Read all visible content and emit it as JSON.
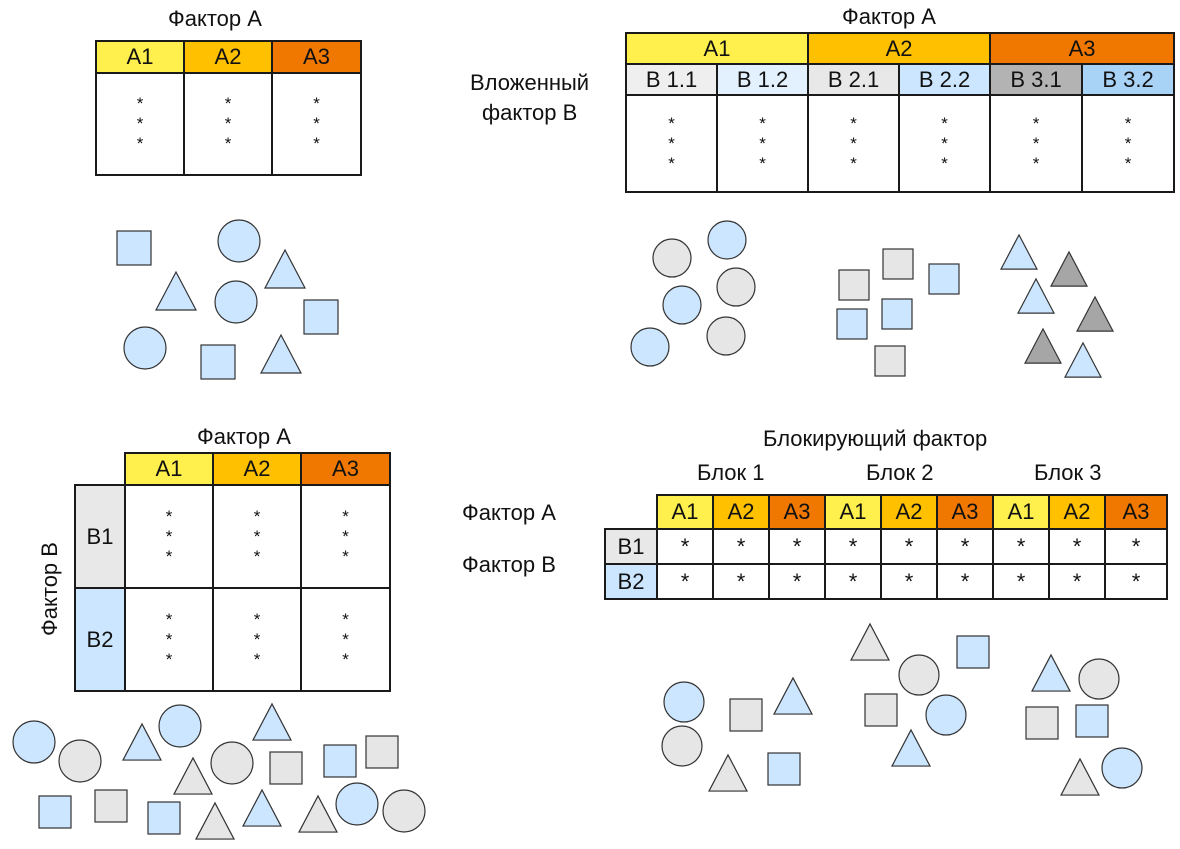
{
  "colors": {
    "a1": "#fff04d",
    "a2": "#ffc000",
    "a3": "#f07800",
    "shape_blue": "#cce6ff",
    "shape_gray": "#e6e6e6",
    "shape_dark": "#a6a6a6",
    "shape_stroke": "#333333"
  },
  "panel1": {
    "title": "Фактор А",
    "headers": [
      "A1",
      "A2",
      "A3"
    ],
    "rows": [
      [
        "*",
        "*",
        "*"
      ],
      [
        "*",
        "*",
        "*"
      ],
      [
        "*",
        "*",
        "*"
      ]
    ]
  },
  "panel2": {
    "title": "Фактор А",
    "nested_label_1": "Вложенный",
    "nested_label_2": "фактор В",
    "headers": [
      "A1",
      "A2",
      "A3"
    ],
    "subheaders": [
      "B 1.1",
      "B 1.2",
      "B 2.1",
      "B 2.2",
      "B 3.1",
      "B 3.2"
    ],
    "rows": [
      [
        "*",
        "*",
        "*",
        "*",
        "*",
        "*"
      ],
      [
        "*",
        "*",
        "*",
        "*",
        "*",
        "*"
      ],
      [
        "*",
        "*",
        "*",
        "*",
        "*",
        "*"
      ]
    ]
  },
  "panel3": {
    "title": "Фактор А",
    "side_label": "Фактор В",
    "headers": [
      "A1",
      "A2",
      "A3"
    ],
    "row_headers": [
      "B1",
      "B2"
    ],
    "star": "*"
  },
  "panel4": {
    "title": "Блокирующий фактор",
    "blocks": [
      "Блок 1",
      "Блок 2",
      "Блок 3"
    ],
    "factor_a_label": "Фактор А",
    "factor_b_label": "Фактор В",
    "headers": [
      "A1",
      "A2",
      "A3",
      "A1",
      "A2",
      "A3",
      "A1",
      "A2",
      "A3"
    ],
    "row_headers": [
      "B1",
      "B2"
    ],
    "star": "*"
  }
}
